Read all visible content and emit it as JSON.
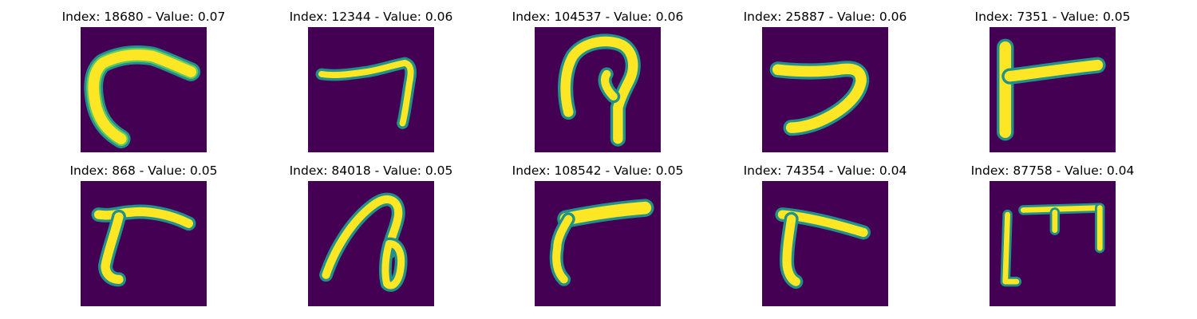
{
  "colors": {
    "background": "#440154",
    "mid_dark": "#21918c",
    "mid_light": "#5ec962",
    "stroke": "#fde725"
  },
  "panels": [
    {
      "index": 18680,
      "value": 0.07,
      "title": "Index: 18680 - Value: 0.07"
    },
    {
      "index": 12344,
      "value": 0.06,
      "title": "Index: 12344 - Value: 0.06"
    },
    {
      "index": 104537,
      "value": 0.06,
      "title": "Index: 104537 - Value: 0.06"
    },
    {
      "index": 25887,
      "value": 0.06,
      "title": "Index: 25887 - Value: 0.06"
    },
    {
      "index": 7351,
      "value": 0.05,
      "title": "Index: 7351 - Value: 0.05"
    },
    {
      "index": 868,
      "value": 0.05,
      "title": "Index: 868 - Value: 0.05"
    },
    {
      "index": 84018,
      "value": 0.05,
      "title": "Index: 84018 - Value: 0.05"
    },
    {
      "index": 108542,
      "value": 0.05,
      "title": "Index: 108542 - Value: 0.05"
    },
    {
      "index": 74354,
      "value": 0.04,
      "title": "Index: 74354 - Value: 0.04"
    },
    {
      "index": 87758,
      "value": 0.04,
      "title": "Index: 87758 - Value: 0.04"
    }
  ]
}
